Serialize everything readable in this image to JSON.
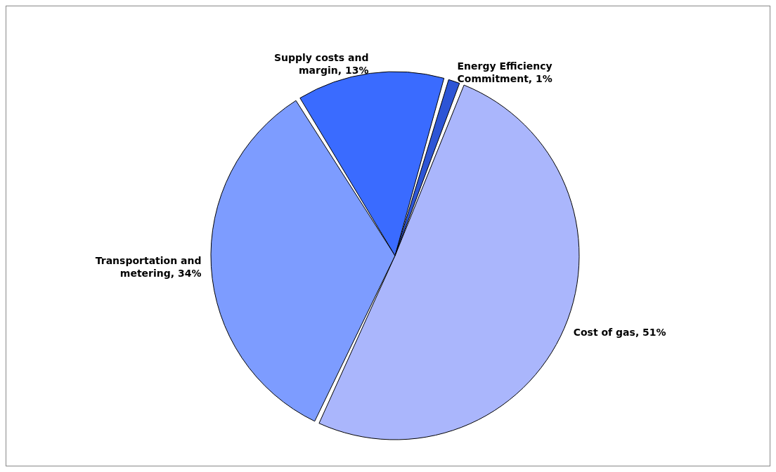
{
  "chart_data": {
    "type": "pie",
    "categories": [
      "Cost of gas",
      "Transportation and metering",
      "Supply costs and margin",
      "Energy Efficiency Commitment"
    ],
    "values": [
      51,
      34,
      13,
      1
    ],
    "value_labels": [
      "51%",
      "34%",
      "13%",
      "1%"
    ],
    "colors": [
      "#aab6fc",
      "#7d9cff",
      "#3a6bff",
      "#2d55d6"
    ]
  }
}
